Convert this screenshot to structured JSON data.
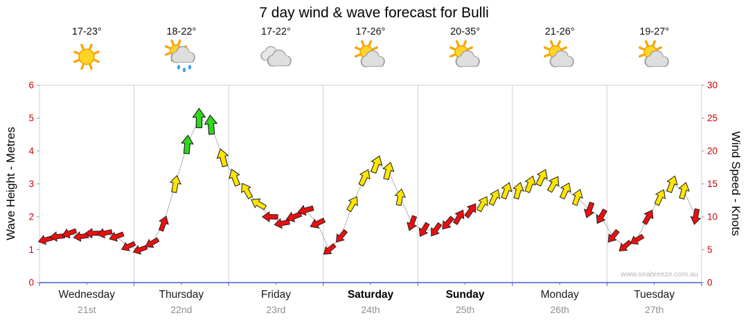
{
  "title": "7 day wind & wave forecast for Bulli",
  "watermark": "www.seabreeze.com.au",
  "header": {
    "temps": [
      "17-23°",
      "18-22°",
      "17-22°",
      "17-26°",
      "20-35°",
      "21-26°",
      "19-27°"
    ],
    "icons": [
      "sunny",
      "sun-showers",
      "cloudy",
      "partly-cloudy",
      "partly-cloudy",
      "partly-cloudy",
      "partly-cloudy"
    ]
  },
  "chart_data": {
    "type": "line",
    "title": "7 day wind & wave forecast for Bulli",
    "ylabel_left": "Wave Height - Metres",
    "ylabel_right": "Wind Speed - Knots",
    "ylim_left": [
      0,
      6
    ],
    "ylim_right": [
      0,
      30
    ],
    "yticks_left": [
      0,
      1,
      2,
      3,
      4,
      5,
      6
    ],
    "yticks_right": [
      0,
      5,
      10,
      15,
      20,
      25,
      30
    ],
    "x_days": [
      {
        "name": "Wednesday",
        "date": "21st",
        "bold": false
      },
      {
        "name": "Thursday",
        "date": "22nd",
        "bold": false
      },
      {
        "name": "Friday",
        "date": "23rd",
        "bold": false
      },
      {
        "name": "Saturday",
        "date": "24th",
        "bold": true
      },
      {
        "name": "Sunday",
        "date": "25th",
        "bold": true
      },
      {
        "name": "Monday",
        "date": "26th",
        "bold": false
      },
      {
        "name": "Tuesday",
        "date": "27th",
        "bold": false
      }
    ],
    "series": [
      {
        "name": "Wind speed (knots) with direction arrows",
        "marker": "wind-arrow",
        "points_per_day": 8,
        "points": [
          [
            6.5,
            255
          ],
          [
            7,
            265
          ],
          [
            7.5,
            250
          ],
          [
            7,
            262
          ],
          [
            7.5,
            270
          ],
          [
            7.5,
            258
          ],
          [
            7,
            250
          ],
          [
            5.5,
            245
          ],
          [
            5,
            250
          ],
          [
            6,
            240
          ],
          [
            9,
            20
          ],
          [
            15,
            10
          ],
          [
            21,
            5
          ],
          [
            25,
            0
          ],
          [
            24,
            355
          ],
          [
            19,
            345
          ],
          [
            16,
            340
          ],
          [
            14,
            330
          ],
          [
            12,
            300
          ],
          [
            10,
            270
          ],
          [
            9,
            260
          ],
          [
            10,
            250
          ],
          [
            11,
            255
          ],
          [
            9,
            245
          ],
          [
            5,
            230
          ],
          [
            7,
            220
          ],
          [
            12,
            30
          ],
          [
            16,
            25
          ],
          [
            18,
            20
          ],
          [
            17,
            15
          ],
          [
            13,
            10
          ],
          [
            9,
            200
          ],
          [
            8,
            210
          ],
          [
            8,
            215
          ],
          [
            9,
            220
          ],
          [
            10,
            30
          ],
          [
            11,
            35
          ],
          [
            12,
            30
          ],
          [
            13,
            25
          ],
          [
            14,
            20
          ],
          [
            14,
            15
          ],
          [
            15,
            20
          ],
          [
            16,
            25
          ],
          [
            15,
            30
          ],
          [
            14,
            25
          ],
          [
            13,
            20
          ],
          [
            11,
            200
          ],
          [
            10,
            210
          ],
          [
            7,
            220
          ],
          [
            5.5,
            230
          ],
          [
            6.5,
            240
          ],
          [
            10,
            30
          ],
          [
            13,
            25
          ],
          [
            15,
            20
          ],
          [
            14,
            15
          ],
          [
            10,
            190
          ]
        ]
      }
    ],
    "speed_colors": {
      "light_max_knots": 11,
      "moderate_max_knots": 19,
      "light": "#e81010",
      "moderate": "#ffe400",
      "fresh": "#2fd818"
    },
    "grid": {
      "vertical_day_lines": true,
      "horizontal": false
    },
    "legend": "none"
  },
  "colors": {
    "tick_labels": "#cc0000",
    "axis_line": "#4a5ac8",
    "grid_line": "#cfcfcf",
    "date_text": "#8f8f8f",
    "title_text": "#000000"
  }
}
